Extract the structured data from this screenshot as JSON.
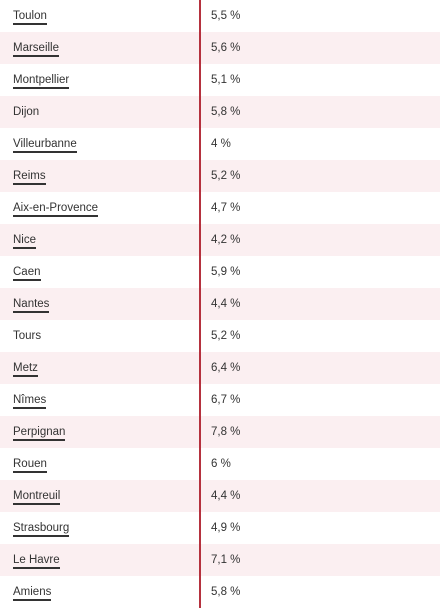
{
  "rows": [
    {
      "city": "Toulon",
      "value": "5,5 %",
      "link": true
    },
    {
      "city": "Marseille",
      "value": "5,6 %",
      "link": true
    },
    {
      "city": "Montpellier",
      "value": "5,1 %",
      "link": true
    },
    {
      "city": "Dijon",
      "value": "5,8 %",
      "link": false
    },
    {
      "city": "Villeurbanne",
      "value": "4 %",
      "link": true
    },
    {
      "city": "Reims",
      "value": "5,2 %",
      "link": true
    },
    {
      "city": "Aix-en-Provence",
      "value": "4,7 %",
      "link": true
    },
    {
      "city": "Nice",
      "value": "4,2 %",
      "link": true
    },
    {
      "city": "Caen",
      "value": "5,9 %",
      "link": true
    },
    {
      "city": "Nantes",
      "value": "4,4 %",
      "link": true
    },
    {
      "city": "Tours",
      "value": "5,2 %",
      "link": false
    },
    {
      "city": "Metz",
      "value": "6,4 %",
      "link": true
    },
    {
      "city": "Nîmes",
      "value": "6,7 %",
      "link": true
    },
    {
      "city": "Perpignan",
      "value": "7,8 %",
      "link": true
    },
    {
      "city": "Rouen",
      "value": "6 %",
      "link": true
    },
    {
      "city": "Montreuil",
      "value": "4,4 %",
      "link": true
    },
    {
      "city": "Strasbourg",
      "value": "4,9 %",
      "link": true
    },
    {
      "city": "Le Havre",
      "value": "7,1 %",
      "link": true
    },
    {
      "city": "Amiens",
      "value": "5,8 %",
      "link": true
    }
  ],
  "colors": {
    "divider": "#b5313e",
    "shade": "#fbeff1",
    "text": "#333333"
  }
}
